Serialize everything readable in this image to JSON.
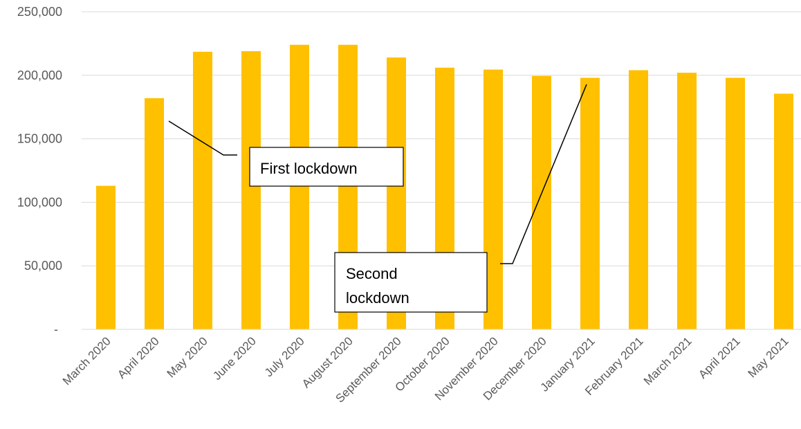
{
  "chart_data": {
    "type": "bar",
    "title": "",
    "xlabel": "",
    "ylabel": "",
    "categories": [
      "March 2020",
      "April 2020",
      "May 2020",
      "June 2020",
      "July 2020",
      "August 2020",
      "September 2020",
      "October 2020",
      "November 2020",
      "December 2020",
      "January 2021",
      "February 2021",
      "March 2021",
      "April 2021",
      "May 2021"
    ],
    "values": [
      113000,
      182000,
      218500,
      219000,
      224000,
      224000,
      214000,
      206000,
      204500,
      199500,
      198000,
      204000,
      202000,
      198000,
      185500
    ],
    "ylim": [
      0,
      250000
    ],
    "yticks": [
      0,
      50000,
      100000,
      150000,
      200000,
      250000
    ],
    "ytick_labels": [
      "-",
      "50,000",
      "100,000",
      "150,000",
      "200,000",
      "250,000"
    ],
    "grid": true,
    "bar_color": "#FFC000",
    "annotations": [
      {
        "lines": [
          "First lockdown"
        ],
        "points_to": "April 2020"
      },
      {
        "lines": [
          "Second",
          "lockdown"
        ],
        "points_to": "January 2021"
      }
    ]
  }
}
